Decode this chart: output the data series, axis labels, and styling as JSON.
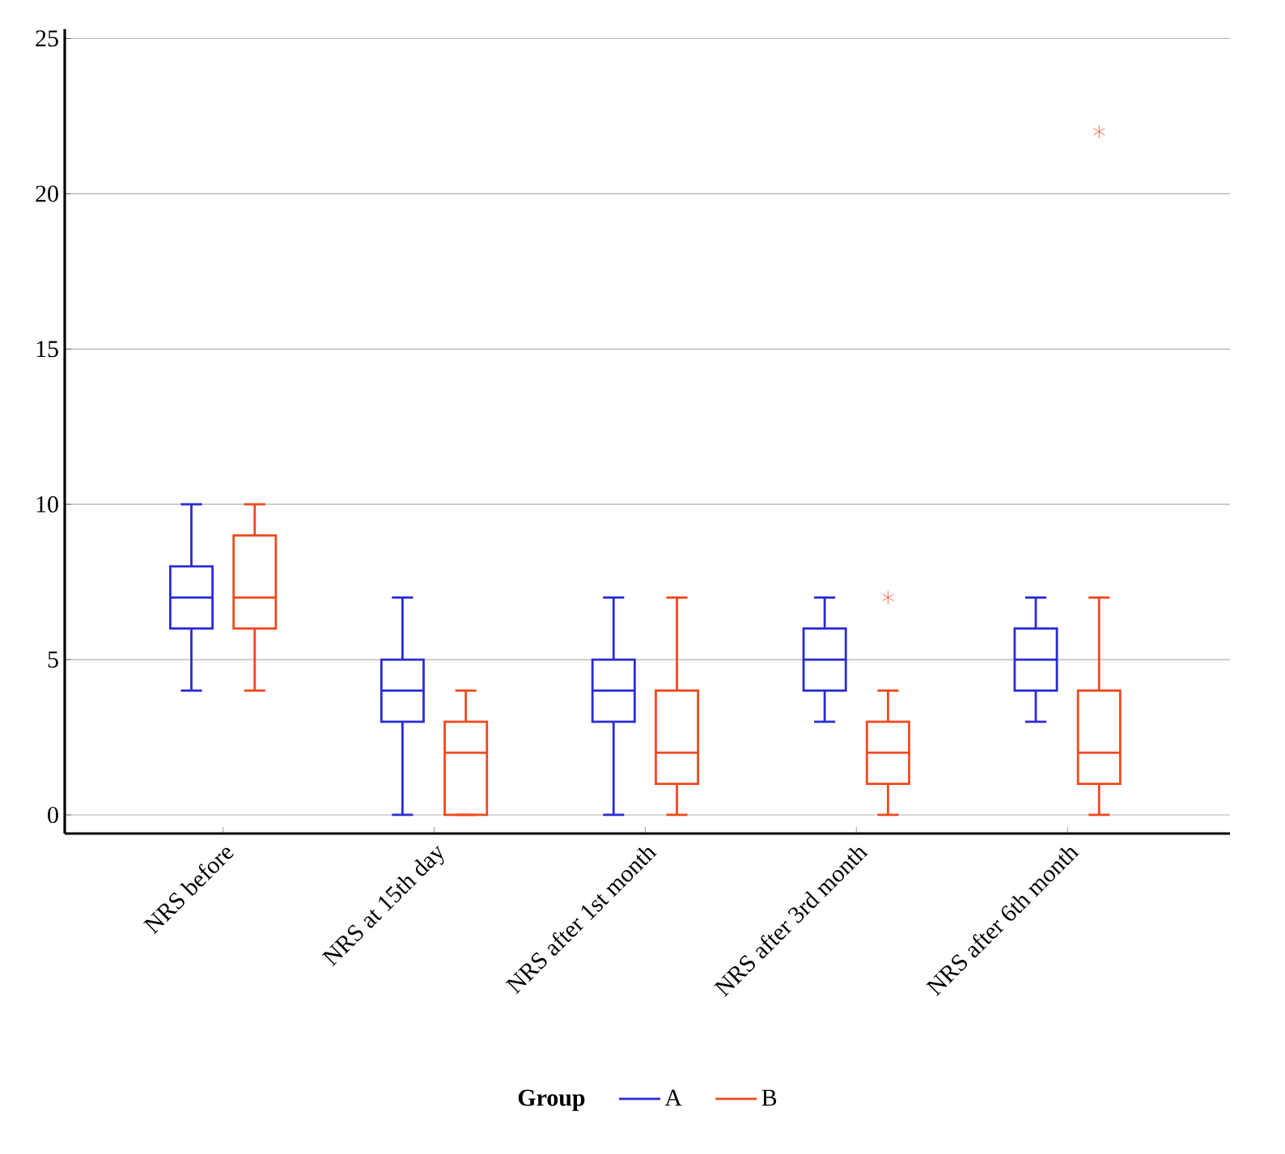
{
  "chart_data": {
    "type": "box",
    "categories": [
      "NRS before",
      "NRS at 15th day",
      "NRS after 1st month",
      "NRS after 3rd month",
      "NRS after 6th month"
    ],
    "series": [
      {
        "name": "A",
        "color": "#2b2bd4",
        "boxes": [
          {
            "low": 4,
            "q1": 6,
            "median": 7,
            "q3": 8,
            "high": 10
          },
          {
            "low": 0,
            "q1": 3,
            "median": 4,
            "q3": 5,
            "high": 7
          },
          {
            "low": 0,
            "q1": 3,
            "median": 4,
            "q3": 5,
            "high": 7
          },
          {
            "low": 3,
            "q1": 4,
            "median": 5,
            "q3": 6,
            "high": 7
          },
          {
            "low": 3,
            "q1": 4,
            "median": 5,
            "q3": 6,
            "high": 7
          }
        ]
      },
      {
        "name": "B",
        "color": "#f2481e",
        "boxes": [
          {
            "low": 4,
            "q1": 6,
            "median": 7,
            "q3": 9,
            "high": 10
          },
          {
            "low": 0,
            "q1": 0,
            "median": 2,
            "q3": 3,
            "high": 4
          },
          {
            "low": 0,
            "q1": 1,
            "median": 2,
            "q3": 4,
            "high": 7
          },
          {
            "low": 0,
            "q1": 1,
            "median": 2,
            "q3": 3,
            "high": 4,
            "outliers": [
              7
            ]
          },
          {
            "low": 0,
            "q1": 1,
            "median": 2,
            "q3": 4,
            "high": 7,
            "outliers": [
              22
            ]
          }
        ]
      }
    ],
    "legend_title": "Group",
    "legend": "bottom",
    "ylim": [
      -0.6,
      25.3
    ],
    "yticks": [
      0,
      5,
      10,
      15,
      20,
      25
    ],
    "grid": "y"
  }
}
